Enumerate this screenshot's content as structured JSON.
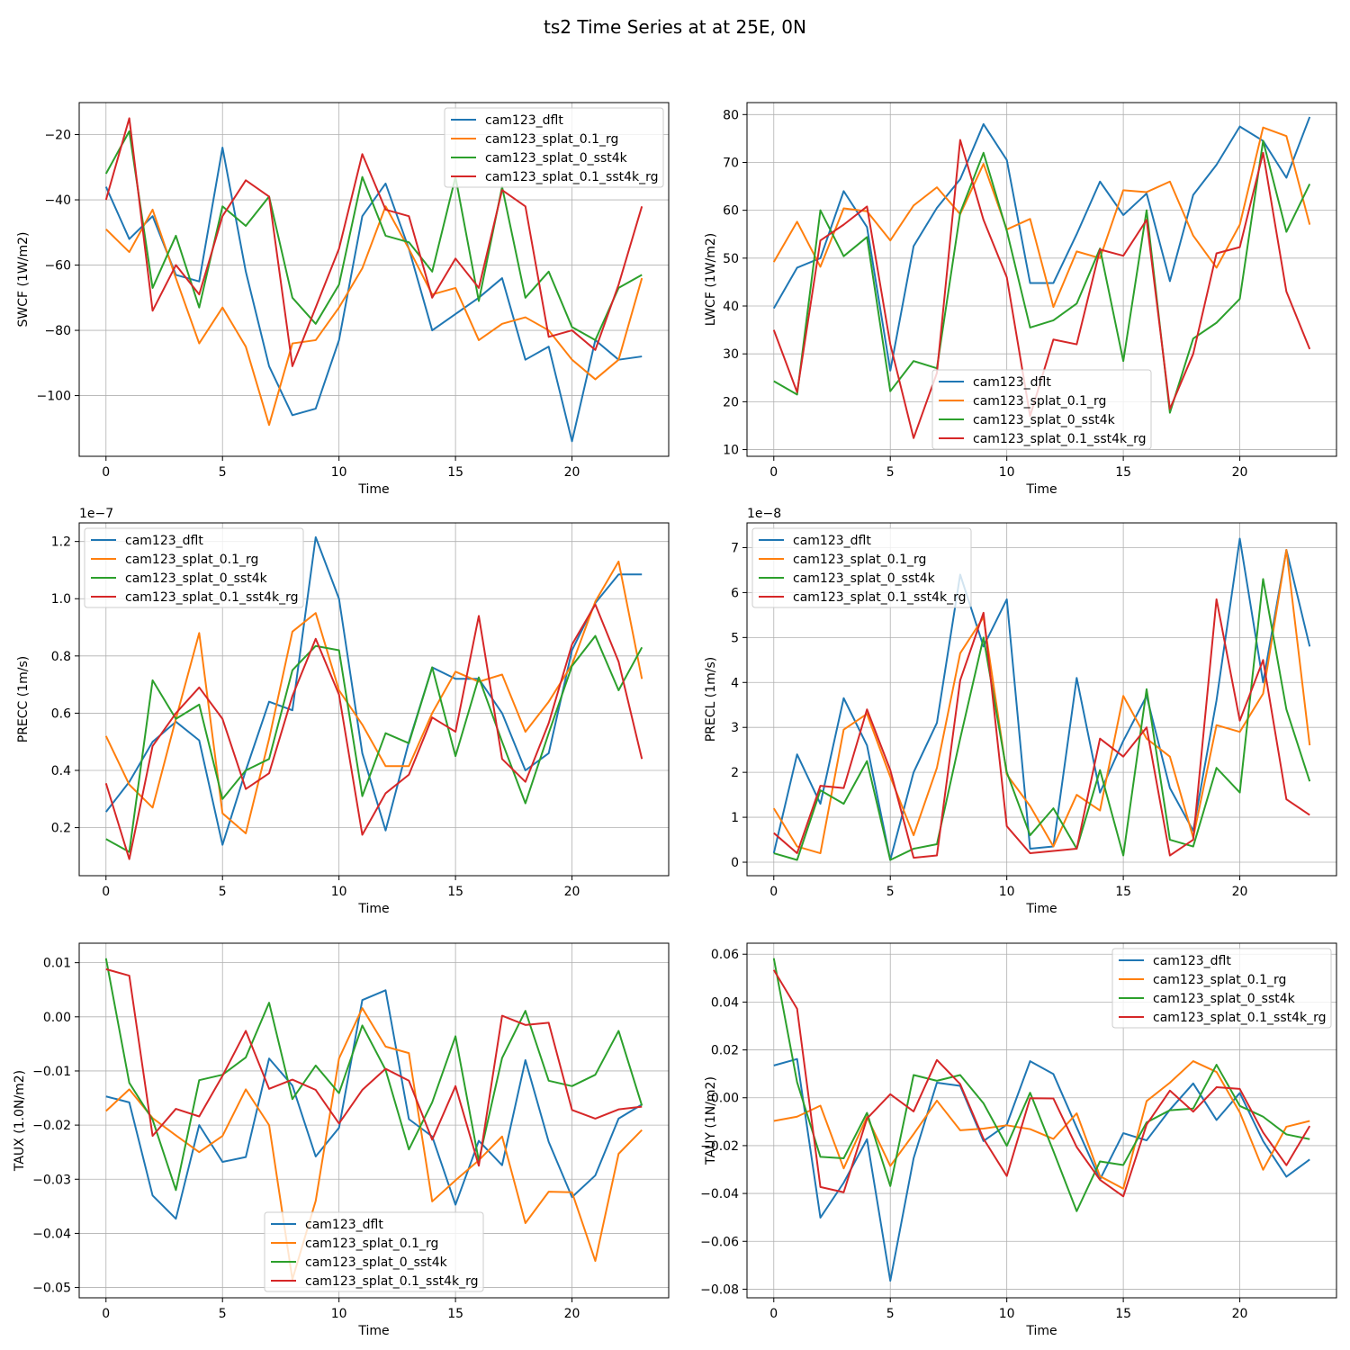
{
  "title": "ts2 Time Series at at 25E, 0N",
  "series_names": [
    "cam123_dflt",
    "cam123_splat_0.1_rg",
    "cam123_splat_0_sst4k",
    "cam123_splat_0.1_sst4k_rg"
  ],
  "colors": [
    "#1f77b4",
    "#ff7f0e",
    "#2ca02c",
    "#d62728"
  ],
  "chart_data": [
    {
      "type": "line",
      "xlabel": "Time",
      "ylabel": "SWCF (1W/m2)",
      "xlim": [
        -1.15,
        24.15
      ],
      "ylim": [
        -118.6,
        -10.2
      ],
      "xticks": [
        0,
        5,
        10,
        15,
        20
      ],
      "xtick_labels": [
        "0",
        "5",
        "10",
        "15",
        "20"
      ],
      "yticks": [
        -100,
        -80,
        -60,
        -40,
        -20
      ],
      "ytick_labels": [
        "−100",
        "−80",
        "−60",
        "−40",
        "−20"
      ],
      "offset_text": "",
      "legend": "top-right",
      "grid": true,
      "x": [
        0,
        1,
        2,
        3,
        4,
        5,
        6,
        7,
        8,
        9,
        10,
        11,
        12,
        13,
        14,
        15,
        16,
        17,
        18,
        19,
        20,
        21,
        22,
        23
      ],
      "series": [
        {
          "name": "cam123_dflt",
          "values": [
            -36,
            -52,
            -45,
            -63,
            -65,
            -24,
            -62,
            -91,
            -106,
            -104,
            -83,
            -45,
            -35,
            -55,
            -80,
            -75,
            -70,
            -64,
            -89,
            -85,
            -114,
            -83,
            -89,
            -88
          ]
        },
        {
          "name": "cam123_splat_0.1_rg",
          "values": [
            -49,
            -56,
            -43,
            -64,
            -84,
            -73,
            -85,
            -109,
            -84,
            -83,
            -73,
            -61,
            -42,
            -55,
            -69,
            -67,
            -83,
            -78,
            -76,
            -80,
            -89,
            -95,
            -89,
            -64
          ]
        },
        {
          "name": "cam123_splat_0_sst4k",
          "values": [
            -32,
            -19,
            -67,
            -51,
            -73,
            -42,
            -48,
            -39,
            -70,
            -78,
            -66,
            -33,
            -51,
            -53,
            -62,
            -33,
            -71,
            -36,
            -70,
            -62,
            -79,
            -83,
            -67,
            -63
          ]
        },
        {
          "name": "cam123_splat_0.1_sst4k_rg",
          "values": [
            -40,
            -15,
            -74,
            -60,
            -69,
            -45,
            -34,
            -39,
            -91,
            -73,
            -55,
            -26,
            -43,
            -45,
            -70,
            -58,
            -67,
            -37,
            -42,
            -82,
            -80,
            -86,
            -66,
            -42
          ]
        }
      ]
    },
    {
      "type": "line",
      "xlabel": "Time",
      "ylabel": "LWCF (1W/m2)",
      "xlim": [
        -1.15,
        24.15
      ],
      "ylim": [
        8.6,
        82.5
      ],
      "xticks": [
        0,
        5,
        10,
        15,
        20
      ],
      "xtick_labels": [
        "0",
        "5",
        "10",
        "15",
        "20"
      ],
      "yticks": [
        10,
        20,
        30,
        40,
        50,
        60,
        70,
        80
      ],
      "ytick_labels": [
        "10",
        "20",
        "30",
        "40",
        "50",
        "60",
        "70",
        "80"
      ],
      "offset_text": "",
      "legend": "lower-center",
      "grid": true,
      "x": [
        0,
        1,
        2,
        3,
        4,
        5,
        6,
        7,
        8,
        9,
        10,
        11,
        12,
        13,
        14,
        15,
        16,
        17,
        18,
        19,
        20,
        21,
        22,
        23
      ],
      "series": [
        {
          "name": "cam123_dflt",
          "values": [
            39.5,
            48,
            50,
            64,
            56.5,
            26.5,
            52.5,
            60.5,
            66.5,
            78,
            70.5,
            44.8,
            44.8,
            55,
            66,
            59,
            63.5,
            45.2,
            63.2,
            69.5,
            77.5,
            74.5,
            66.8,
            79.5
          ]
        },
        {
          "name": "cam123_splat_0.1_rg",
          "values": [
            49.2,
            57.6,
            48.2,
            60.4,
            59.8,
            53.7,
            61,
            64.8,
            59.2,
            69.7,
            56,
            58.2,
            39.8,
            51.4,
            50,
            64.2,
            63.8,
            66,
            54.7,
            48,
            57,
            77.3,
            75.5,
            57
          ]
        },
        {
          "name": "cam123_splat_0_sst4k",
          "values": [
            24.3,
            21.5,
            60,
            50.4,
            54.4,
            22.2,
            28.5,
            27,
            59.5,
            72,
            55.7,
            35.5,
            37,
            40.5,
            52,
            28.5,
            60,
            17.7,
            33.2,
            36.5,
            41.5,
            74.5,
            55.5,
            65.5
          ]
        },
        {
          "name": "cam123_splat_0.1_sst4k_rg",
          "values": [
            35,
            22,
            53.7,
            57,
            60.8,
            32,
            12.4,
            26,
            74.7,
            58,
            46,
            17,
            33,
            32,
            51.8,
            50.5,
            58,
            18.5,
            30,
            51,
            52.3,
            72,
            43,
            31
          ]
        }
      ]
    },
    {
      "type": "line",
      "xlabel": "Time",
      "ylabel": "PRECC (1m/s)",
      "xlim": [
        -1.15,
        24.15
      ],
      "ylim": [
        0.032,
        1.265
      ],
      "xticks": [
        0,
        5,
        10,
        15,
        20
      ],
      "xtick_labels": [
        "0",
        "5",
        "10",
        "15",
        "20"
      ],
      "yticks": [
        0.2,
        0.4,
        0.6,
        0.8,
        1.0,
        1.2
      ],
      "ytick_labels": [
        "0.2",
        "0.4",
        "0.6",
        "0.8",
        "1.0",
        "1.2"
      ],
      "offset_text": "1e−7",
      "legend": "top-left",
      "grid": true,
      "x": [
        0,
        1,
        2,
        3,
        4,
        5,
        6,
        7,
        8,
        9,
        10,
        11,
        12,
        13,
        14,
        15,
        16,
        17,
        18,
        19,
        20,
        21,
        22,
        23
      ],
      "series": [
        {
          "name": "cam123_dflt",
          "values": [
            0.255,
            0.36,
            0.5,
            0.57,
            0.505,
            0.14,
            0.4,
            0.64,
            0.61,
            1.215,
            1.0,
            0.46,
            0.19,
            0.5,
            0.76,
            0.72,
            0.72,
            0.6,
            0.4,
            0.46,
            0.82,
            0.985,
            1.085,
            1.085
          ]
        },
        {
          "name": "cam123_splat_0.1_rg",
          "values": [
            0.52,
            0.35,
            0.27,
            0.58,
            0.88,
            0.25,
            0.18,
            0.51,
            0.885,
            0.95,
            0.68,
            0.56,
            0.415,
            0.415,
            0.6,
            0.745,
            0.71,
            0.735,
            0.535,
            0.64,
            0.77,
            0.99,
            1.13,
            0.72
          ]
        },
        {
          "name": "cam123_splat_0_sst4k",
          "values": [
            0.16,
            0.115,
            0.715,
            0.58,
            0.63,
            0.3,
            0.4,
            0.44,
            0.75,
            0.835,
            0.82,
            0.31,
            0.53,
            0.495,
            0.76,
            0.45,
            0.725,
            0.5,
            0.285,
            0.53,
            0.765,
            0.87,
            0.68,
            0.83
          ]
        },
        {
          "name": "cam123_splat_0.1_sst4k_rg",
          "values": [
            0.355,
            0.09,
            0.485,
            0.6,
            0.69,
            0.58,
            0.335,
            0.39,
            0.66,
            0.86,
            0.665,
            0.175,
            0.32,
            0.385,
            0.585,
            0.535,
            0.94,
            0.44,
            0.36,
            0.565,
            0.84,
            0.98,
            0.78,
            0.44
          ]
        }
      ]
    },
    {
      "type": "line",
      "xlabel": "Time",
      "ylabel": "PRECL (1m/s)",
      "xlim": [
        -1.15,
        24.15
      ],
      "ylim": [
        -0.3,
        7.55
      ],
      "xticks": [
        0,
        5,
        10,
        15,
        20
      ],
      "xtick_labels": [
        "0",
        "5",
        "10",
        "15",
        "20"
      ],
      "yticks": [
        0,
        1,
        2,
        3,
        4,
        5,
        6,
        7
      ],
      "ytick_labels": [
        "0",
        "1",
        "2",
        "3",
        "4",
        "5",
        "6",
        "7"
      ],
      "offset_text": "1e−8",
      "legend": "top-left",
      "grid": true,
      "x": [
        0,
        1,
        2,
        3,
        4,
        5,
        6,
        7,
        8,
        9,
        10,
        11,
        12,
        13,
        14,
        15,
        16,
        17,
        18,
        19,
        20,
        21,
        22,
        23
      ],
      "series": [
        {
          "name": "cam123_dflt",
          "values": [
            0.2,
            2.4,
            1.3,
            3.65,
            2.6,
            0.05,
            2.0,
            3.1,
            6.4,
            4.8,
            5.85,
            0.3,
            0.35,
            4.1,
            1.55,
            2.7,
            3.7,
            1.65,
            0.7,
            3.6,
            7.2,
            4.0,
            6.95,
            4.8
          ]
        },
        {
          "name": "cam123_splat_0.1_rg",
          "values": [
            1.2,
            0.35,
            0.2,
            2.95,
            3.3,
            1.9,
            0.6,
            2.1,
            4.65,
            5.45,
            1.95,
            1.25,
            0.35,
            1.5,
            1.15,
            3.7,
            2.75,
            2.35,
            0.55,
            3.05,
            2.9,
            3.75,
            6.95,
            2.6
          ]
        },
        {
          "name": "cam123_splat_0_sst4k",
          "values": [
            0.2,
            0.05,
            1.6,
            1.3,
            2.25,
            0.05,
            0.3,
            0.4,
            2.75,
            5.0,
            2.0,
            0.6,
            1.2,
            0.3,
            2.05,
            0.15,
            3.85,
            0.5,
            0.35,
            2.1,
            1.55,
            6.3,
            3.4,
            1.8
          ]
        },
        {
          "name": "cam123_splat_0.1_sst4k_rg",
          "values": [
            0.65,
            0.2,
            1.7,
            1.65,
            3.4,
            2.05,
            0.1,
            0.15,
            4.05,
            5.55,
            0.8,
            0.2,
            0.25,
            0.3,
            2.75,
            2.35,
            3.0,
            0.15,
            0.5,
            5.85,
            3.15,
            4.5,
            1.4,
            1.05
          ]
        }
      ]
    },
    {
      "type": "line",
      "xlabel": "Time",
      "ylabel": "TAUX (1.0N/m2)",
      "xlim": [
        -1.15,
        24.15
      ],
      "ylim": [
        -0.0519,
        0.0136
      ],
      "xticks": [
        0,
        5,
        10,
        15,
        20
      ],
      "xtick_labels": [
        "0",
        "5",
        "10",
        "15",
        "20"
      ],
      "yticks": [
        -0.05,
        -0.04,
        -0.03,
        -0.02,
        -0.01,
        0.0,
        0.01
      ],
      "ytick_labels": [
        "−0.05",
        "−0.04",
        "−0.03",
        "−0.02",
        "−0.01",
        "0.00",
        "0.01"
      ],
      "offset_text": "",
      "legend": "lower-center",
      "grid": true,
      "x": [
        0,
        1,
        2,
        3,
        4,
        5,
        6,
        7,
        8,
        9,
        10,
        11,
        12,
        13,
        14,
        15,
        16,
        17,
        18,
        19,
        20,
        21,
        22,
        23
      ],
      "series": [
        {
          "name": "cam123_dflt",
          "values": [
            -0.0147,
            -0.0158,
            -0.033,
            -0.0373,
            -0.02,
            -0.0268,
            -0.0259,
            -0.0077,
            -0.0127,
            -0.0258,
            -0.0205,
            0.0031,
            0.0049,
            -0.0189,
            -0.0221,
            -0.0347,
            -0.0229,
            -0.0274,
            -0.008,
            -0.0231,
            -0.0333,
            -0.0293,
            -0.0188,
            -0.0162
          ]
        },
        {
          "name": "cam123_splat_0.1_rg",
          "values": [
            -0.0174,
            -0.0134,
            -0.0187,
            -0.0219,
            -0.025,
            -0.022,
            -0.0134,
            -0.02,
            -0.0485,
            -0.034,
            -0.0077,
            0.0016,
            -0.0055,
            -0.0067,
            -0.0341,
            -0.0302,
            -0.0265,
            -0.0221,
            -0.0381,
            -0.0323,
            -0.0324,
            -0.0451,
            -0.0253,
            -0.0209
          ]
        },
        {
          "name": "cam123_splat_0_sst4k",
          "values": [
            0.0108,
            -0.0122,
            -0.019,
            -0.032,
            -0.0117,
            -0.0107,
            -0.0075,
            0.0026,
            -0.0152,
            -0.009,
            -0.0141,
            -0.0016,
            -0.0098,
            -0.0245,
            -0.0158,
            -0.0036,
            -0.0266,
            -0.0076,
            0.0011,
            -0.0118,
            -0.0128,
            -0.0107,
            -0.0026,
            -0.0164
          ]
        },
        {
          "name": "cam123_splat_0.1_sst4k_rg",
          "values": [
            0.0088,
            0.0076,
            -0.022,
            -0.017,
            -0.0184,
            -0.0109,
            -0.0026,
            -0.0133,
            -0.0116,
            -0.0135,
            -0.0197,
            -0.0135,
            -0.0096,
            -0.0118,
            -0.0227,
            -0.0128,
            -0.0275,
            0.0002,
            -0.0015,
            -0.0011,
            -0.0172,
            -0.0188,
            -0.0171,
            -0.0166
          ]
        }
      ]
    },
    {
      "type": "line",
      "xlabel": "Time",
      "ylabel": "TAUY (1N/m2)",
      "xlim": [
        -1.15,
        24.15
      ],
      "ylim": [
        -0.0836,
        0.0646
      ],
      "xticks": [
        0,
        5,
        10,
        15,
        20
      ],
      "xtick_labels": [
        "0",
        "5",
        "10",
        "15",
        "20"
      ],
      "yticks": [
        -0.08,
        -0.06,
        -0.04,
        -0.02,
        0.0,
        0.02,
        0.04,
        0.06
      ],
      "ytick_labels": [
        "−0.08",
        "−0.06",
        "−0.04",
        "−0.02",
        "0.00",
        "0.02",
        "0.04",
        "0.06"
      ],
      "offset_text": "",
      "legend": "top-right",
      "grid": true,
      "x": [
        0,
        1,
        2,
        3,
        4,
        5,
        6,
        7,
        8,
        9,
        10,
        11,
        12,
        13,
        14,
        15,
        16,
        17,
        18,
        19,
        20,
        21,
        22,
        23
      ],
      "series": [
        {
          "name": "cam123_dflt",
          "values": [
            0.0135,
            0.0162,
            -0.0501,
            -0.0355,
            -0.0173,
            -0.0765,
            -0.0253,
            0.0063,
            0.005,
            -0.0181,
            -0.0112,
            0.0153,
            0.0099,
            -0.0124,
            -0.0341,
            -0.0148,
            -0.0178,
            -0.005,
            0.006,
            -0.0093,
            0.002,
            -0.0181,
            -0.033,
            -0.0258
          ]
        },
        {
          "name": "cam123_splat_0.1_rg",
          "values": [
            -0.0097,
            -0.0079,
            -0.0033,
            -0.0295,
            -0.008,
            -0.0285,
            -0.0152,
            -0.0012,
            -0.0136,
            -0.0129,
            -0.0115,
            -0.0131,
            -0.0172,
            -0.0065,
            -0.0328,
            -0.038,
            -0.0014,
            0.0063,
            0.0153,
            0.0108,
            -0.0061,
            -0.0301,
            -0.0121,
            -0.0097
          ]
        },
        {
          "name": "cam123_splat_0_sst4k",
          "values": [
            0.0583,
            0.0065,
            -0.0247,
            -0.0253,
            -0.0063,
            -0.0369,
            0.0095,
            0.0071,
            0.0095,
            -0.0023,
            -0.0201,
            0.0021,
            -0.0223,
            -0.0474,
            -0.0266,
            -0.0281,
            -0.0103,
            -0.0052,
            -0.0045,
            0.0138,
            -0.0034,
            -0.0079,
            -0.0153,
            -0.0173
          ]
        },
        {
          "name": "cam123_splat_0.1_sst4k_rg",
          "values": [
            0.0534,
            0.0372,
            -0.0373,
            -0.0395,
            -0.0087,
            0.0015,
            -0.0057,
            0.0158,
            0.0057,
            -0.0171,
            -0.0327,
            -0.0002,
            -0.0003,
            -0.0206,
            -0.0343,
            -0.0412,
            -0.0112,
            0.003,
            -0.0058,
            0.0044,
            0.0037,
            -0.0145,
            -0.0282,
            -0.0118
          ]
        }
      ]
    }
  ]
}
